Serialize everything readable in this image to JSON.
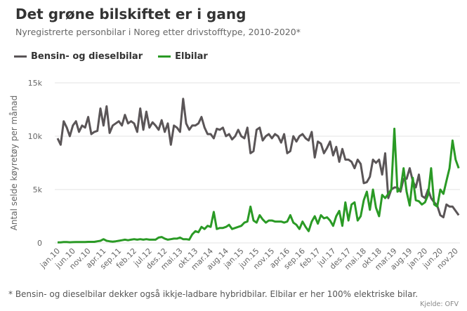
{
  "chart_data": {
    "type": "line",
    "title": "Det grøne bilskiftet er i gang",
    "subtitle": "Nyregistrerte personbilar i Noreg etter drivstofftype, 2010-2020*",
    "xlabel": "",
    "ylabel": "Antal selde køyretøy per månad",
    "ylim": [
      0,
      15000
    ],
    "yticks": [
      0,
      5000,
      10000,
      15000
    ],
    "ytick_labels": [
      "0",
      "5k",
      "10k",
      "15k"
    ],
    "xtick_labels": [
      "jan.10",
      "jun.10",
      "nov.10",
      "apr.11",
      "sep.11",
      "feb.12",
      "jul.12",
      "des.12",
      "mai.13",
      "okt.13",
      "mar.14",
      "aug.14",
      "jan.15",
      "jun.15",
      "nov.15",
      "apr.16",
      "sep.16",
      "feb.17",
      "jul.17",
      "des.17",
      "mai.18",
      "okt.18",
      "mar.19",
      "aug.19",
      "jan.20",
      "jun.20",
      "nov.20"
    ],
    "x_start": "2010-01",
    "x_end": "2020-12",
    "x_step_months": 1,
    "grid": true,
    "legend_position": "top-left",
    "series": [
      {
        "name": "Bensin- og dieselbilar",
        "color": "#5a5557",
        "values": [
          9800,
          9200,
          11400,
          10800,
          10000,
          11000,
          11400,
          10400,
          11000,
          10800,
          11800,
          10200,
          10400,
          10500,
          12600,
          11000,
          12800,
          10300,
          11000,
          11200,
          11400,
          11000,
          12000,
          11200,
          11400,
          11200,
          10400,
          12600,
          10600,
          12300,
          10800,
          11300,
          11000,
          10600,
          11500,
          10400,
          11200,
          9200,
          11000,
          10800,
          10400,
          13500,
          11200,
          10600,
          11000,
          11000,
          11200,
          11800,
          10800,
          10200,
          10200,
          9800,
          10700,
          10600,
          10800,
          10000,
          10200,
          9700,
          10000,
          10600,
          10000,
          9800,
          10800,
          8400,
          8600,
          10600,
          10800,
          9600,
          10000,
          10200,
          9800,
          10200,
          10000,
          9400,
          10200,
          8400,
          8600,
          10000,
          9500,
          10000,
          10200,
          9800,
          9600,
          10400,
          8000,
          9500,
          9300,
          8400,
          8900,
          9500,
          8200,
          9000,
          7600,
          8800,
          7800,
          7800,
          7600,
          7000,
          7800,
          7400,
          5600,
          5700,
          6200,
          7800,
          7500,
          7800,
          6400,
          8400,
          4200,
          5000,
          5200,
          5200,
          4800,
          6000,
          6000,
          7000,
          5800,
          5200,
          6400,
          4400,
          4200,
          5000,
          4200,
          3800,
          3500,
          2600,
          2400,
          3600,
          3400,
          3400,
          3000,
          2600
        ]
      },
      {
        "name": "Elbilar",
        "color": "#2a9a25",
        "values": [
          50,
          50,
          80,
          80,
          60,
          70,
          80,
          80,
          80,
          80,
          100,
          100,
          100,
          150,
          200,
          350,
          200,
          150,
          120,
          150,
          200,
          250,
          300,
          250,
          300,
          350,
          300,
          350,
          300,
          350,
          300,
          300,
          300,
          500,
          550,
          400,
          300,
          350,
          400,
          400,
          500,
          350,
          350,
          300,
          800,
          1100,
          1000,
          1500,
          1300,
          1600,
          1500,
          2900,
          1300,
          1400,
          1400,
          1500,
          1700,
          1300,
          1400,
          1500,
          1600,
          1900,
          2000,
          3400,
          2100,
          1900,
          2600,
          2200,
          1900,
          2100,
          2100,
          2000,
          2000,
          2000,
          1900,
          2000,
          2600,
          1900,
          1700,
          1300,
          2000,
          1500,
          1100,
          2000,
          2500,
          1800,
          2600,
          2300,
          2400,
          2100,
          1600,
          2500,
          3000,
          1600,
          3800,
          2100,
          3600,
          3800,
          2100,
          2500,
          4000,
          4800,
          3100,
          5000,
          3300,
          2500,
          4500,
          4200,
          4600,
          5000,
          10700,
          4800,
          5000,
          7000,
          4800,
          3500,
          6100,
          4000,
          3900,
          3600,
          3800,
          4500,
          7000,
          3600,
          3400,
          5000,
          4600,
          5800,
          7000,
          9600,
          7800,
          7000
        ]
      }
    ],
    "footnote": "* Bensin- og dieselbilar dekker også ikkje-ladbare hybridbilar. Elbilar er her 100% elektriske bilar.",
    "source": "Kjelde: OFV"
  }
}
